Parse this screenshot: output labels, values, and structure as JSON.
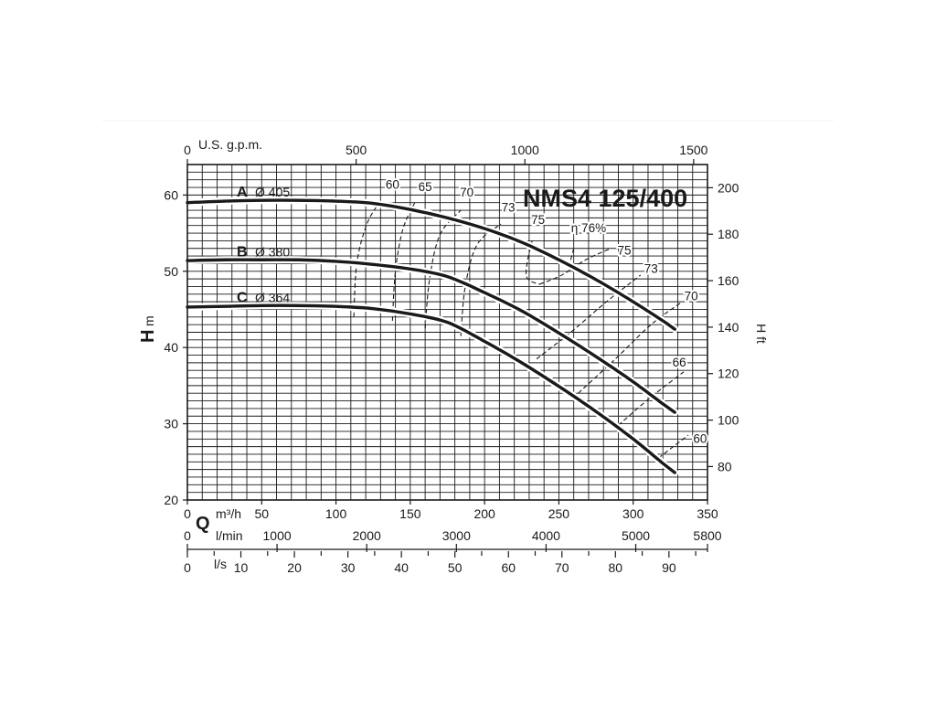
{
  "chart_data": {
    "type": "line",
    "title": "NMS4 125/400",
    "x_axes": {
      "m3h": {
        "unit_label": "m³/h",
        "range": [
          0,
          350
        ],
        "ticks": [
          "0",
          "50",
          "100",
          "150",
          "200",
          "250",
          "300",
          "350"
        ]
      },
      "lmin": {
        "unit_label": "l/min",
        "range": [
          0,
          5800
        ],
        "tick_values": [
          0,
          1000,
          2000,
          3000,
          4000,
          5000,
          5800
        ],
        "ticks": [
          "0",
          "1000",
          "2000",
          "3000",
          "4000",
          "5000",
          "5800"
        ]
      },
      "ls": {
        "unit_label": "l/s",
        "range": [
          0,
          97.2
        ],
        "tick_values": [
          0,
          10,
          20,
          30,
          40,
          50,
          60,
          70,
          80,
          90
        ],
        "ticks": [
          "0",
          "10",
          "20",
          "30",
          "40",
          "50",
          "60",
          "70",
          "80",
          "90"
        ]
      },
      "usgpm": {
        "unit_label": "U.S. g.p.m.",
        "range": [
          0,
          1541
        ],
        "tick_values": [
          0,
          500,
          1000,
          1500
        ],
        "ticks": [
          "0",
          "500",
          "1000",
          "1500"
        ]
      },
      "q_symbol": "Q"
    },
    "y_axes": {
      "left": {
        "symbol": "H",
        "unit": "m",
        "range": [
          20,
          64
        ],
        "ticks": [
          "20",
          "30",
          "40",
          "50",
          "60"
        ]
      },
      "right": {
        "label": "H ft",
        "tick_values": [
          80,
          100,
          120,
          140,
          160,
          180,
          200
        ],
        "ticks": [
          "80",
          "100",
          "120",
          "140",
          "160",
          "180",
          "200"
        ]
      }
    },
    "grid": true,
    "series": [
      {
        "name": "A",
        "diameter_label": "Ø 405",
        "x": [
          0,
          25,
          50,
          75,
          100,
          125,
          150,
          175,
          200,
          225,
          250,
          275,
          300,
          320,
          328
        ],
        "y": [
          59.0,
          59.2,
          59.3,
          59.3,
          59.2,
          58.9,
          58.1,
          57.0,
          55.6,
          53.8,
          51.5,
          48.9,
          46.0,
          43.5,
          42.4
        ]
      },
      {
        "name": "B",
        "diameter_label": "Ø 380",
        "x": [
          0,
          25,
          50,
          75,
          100,
          125,
          150,
          175,
          200,
          225,
          250,
          275,
          300,
          320,
          328
        ],
        "y": [
          51.4,
          51.5,
          51.5,
          51.5,
          51.3,
          50.9,
          50.3,
          49.3,
          47.2,
          44.8,
          41.9,
          38.8,
          35.5,
          32.6,
          31.5
        ]
      },
      {
        "name": "C",
        "diameter_label": "Ø 364",
        "x": [
          0,
          25,
          50,
          75,
          100,
          125,
          150,
          175,
          200,
          225,
          250,
          275,
          300,
          320,
          328
        ],
        "y": [
          45.3,
          45.4,
          45.5,
          45.5,
          45.4,
          45.1,
          44.4,
          43.3,
          40.8,
          38.0,
          34.9,
          31.6,
          28.0,
          24.8,
          23.6
        ]
      }
    ],
    "efficiency_contours": [
      {
        "label": "60",
        "x": [
          112,
          114,
          121,
          131
        ],
        "y": [
          44.0,
          51.0,
          56.3,
          59.5
        ],
        "label_at": [
          138,
          60.8
        ]
      },
      {
        "label": "65",
        "x": [
          138,
          140,
          145,
          153
        ],
        "y": [
          43.5,
          50.0,
          55.5,
          59.0
        ],
        "label_at": [
          160,
          60.5
        ]
      },
      {
        "label": "70",
        "x": [
          160,
          163,
          170,
          184
        ],
        "y": [
          42.5,
          49.0,
          54.8,
          58.0
        ],
        "label_at": [
          188,
          59.8
        ]
      },
      {
        "label": "73",
        "x": [
          184,
          187,
          195,
          211
        ],
        "y": [
          41.5,
          48.0,
          53.5,
          56.2
        ],
        "label_at": [
          216,
          57.8
        ]
      },
      {
        "label": "75",
        "x": [
          232,
          229,
          228,
          231,
          237
        ],
        "y": [
          54.0,
          51.5,
          49.5,
          48.7,
          48.3
        ],
        "label_at": [
          236,
          56.2
        ]
      },
      {
        "label": "75",
        "x": [
          237,
          252,
          268,
          285
        ],
        "y": [
          48.3,
          49.5,
          51.5,
          53.0
        ],
        "label_at": [
          294,
          52.2
        ]
      },
      {
        "label": "η 76%",
        "x": [
          258,
          260
        ],
        "y": [
          51.5,
          53.0
        ],
        "label_at": [
          270,
          55.1
        ]
      },
      {
        "label": "73",
        "x": [
          235,
          258,
          282,
          305
        ],
        "y": [
          38.5,
          42.0,
          46.0,
          49.5
        ],
        "label_at": [
          312,
          49.8
        ]
      },
      {
        "label": "70",
        "x": [
          263,
          288,
          312,
          333
        ],
        "y": [
          34.0,
          38.5,
          43.0,
          46.0
        ],
        "label_at": [
          339,
          46.2
        ]
      },
      {
        "label": "66",
        "x": [
          290,
          312,
          334
        ],
        "y": [
          29.8,
          33.5,
          36.8
        ],
        "label_at": [
          331,
          37.5
        ]
      },
      {
        "label": "60",
        "x": [
          317,
          327,
          337
        ],
        "y": [
          25.5,
          27.0,
          28.5
        ],
        "label_at": [
          345,
          27.5
        ]
      }
    ]
  }
}
